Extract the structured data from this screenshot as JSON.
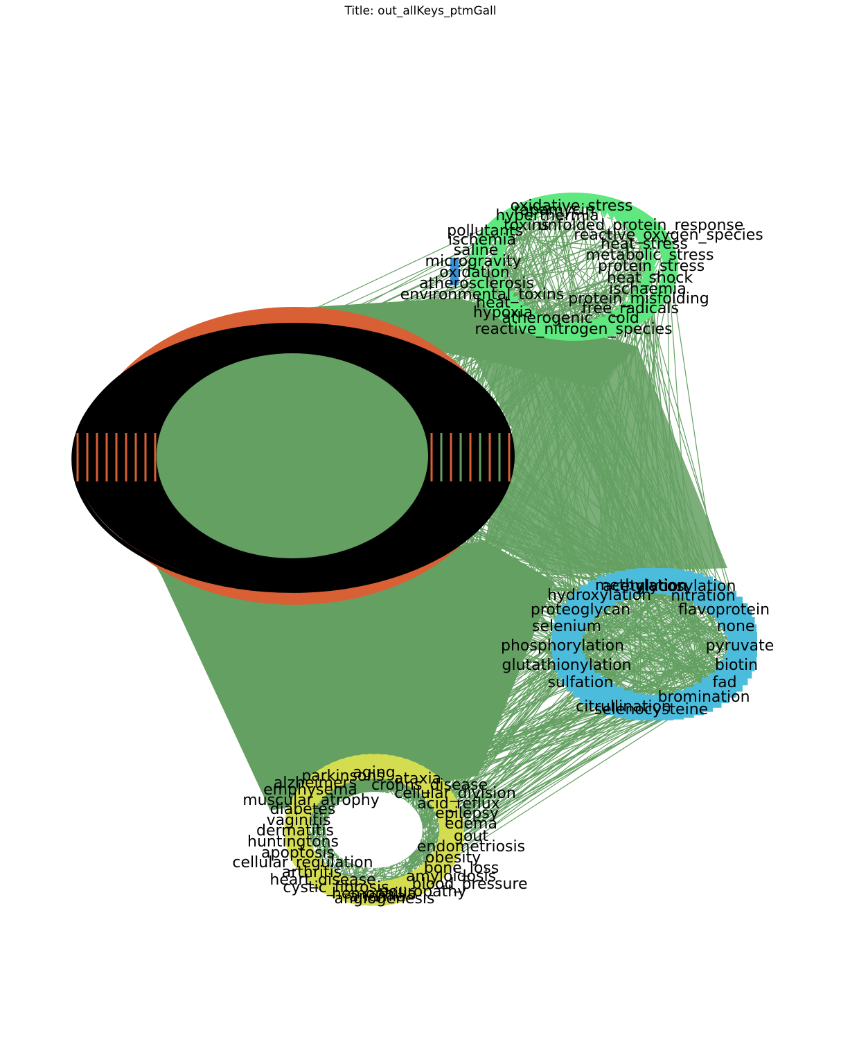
{
  "title": "Title: out_allKeys_ptmGall",
  "colors": {
    "edge": "#64a062",
    "cluster_ptm": "#d95f35",
    "cluster_stress": "#5ee87f",
    "cluster_modification": "#4bbcdc",
    "cluster_disease": "#d4dc50",
    "label": "#000000",
    "accent_blue": "#3a8fd6"
  },
  "clusters": {
    "stress": {
      "labels": [
        "oxidative_stress",
        "hyperthermia",
        "rapamycin",
        "toxins",
        "unfolded_protein_response",
        "pollutants",
        "reactive_oxygen_species",
        "ischemia",
        "heat_stress",
        "saline",
        "metabolic_stress",
        "microgravity",
        "protein_stress",
        "oxidation",
        "heat_shock",
        "atherosclerosis",
        "ischaemia",
        "environmental_toxins",
        "protein_misfolding",
        "heat",
        "free_radicals",
        "hypoxia",
        "atherogenic",
        "cold",
        "reactive_nitrogen_species"
      ]
    },
    "modification": {
      "labels": [
        "methylation",
        "acetylation",
        "glycosylation",
        "hydroxylation",
        "nitration",
        "proteoglycan",
        "flavoprotein",
        "selenium",
        "none",
        "phosphorylation",
        "pyruvate",
        "glutathionylation",
        "biotin",
        "fad",
        "sulfation",
        "bromination",
        "citrullination",
        "selenocysteine"
      ]
    },
    "disease": {
      "labels": [
        "aging",
        "parkinsons",
        "ataxia",
        "alzheimers",
        "crohns_disease",
        "emphysema",
        "cellular_division",
        "muscular_atrophy",
        "acid_reflux",
        "diabetes",
        "epilepsy",
        "vaginitis",
        "edema",
        "dermatitis",
        "gout",
        "huntingtons",
        "endometriosis",
        "apoptosis",
        "obesity",
        "cellular_regulation",
        "bone_loss",
        "arthritis",
        "amyloidosis",
        "heart_disease",
        "blood_pressure",
        "cystic_fibrosis",
        "neuropathy",
        "hemophilia",
        "anemia",
        "angiogenesis"
      ]
    },
    "ptm": {
      "labels": []
    }
  }
}
